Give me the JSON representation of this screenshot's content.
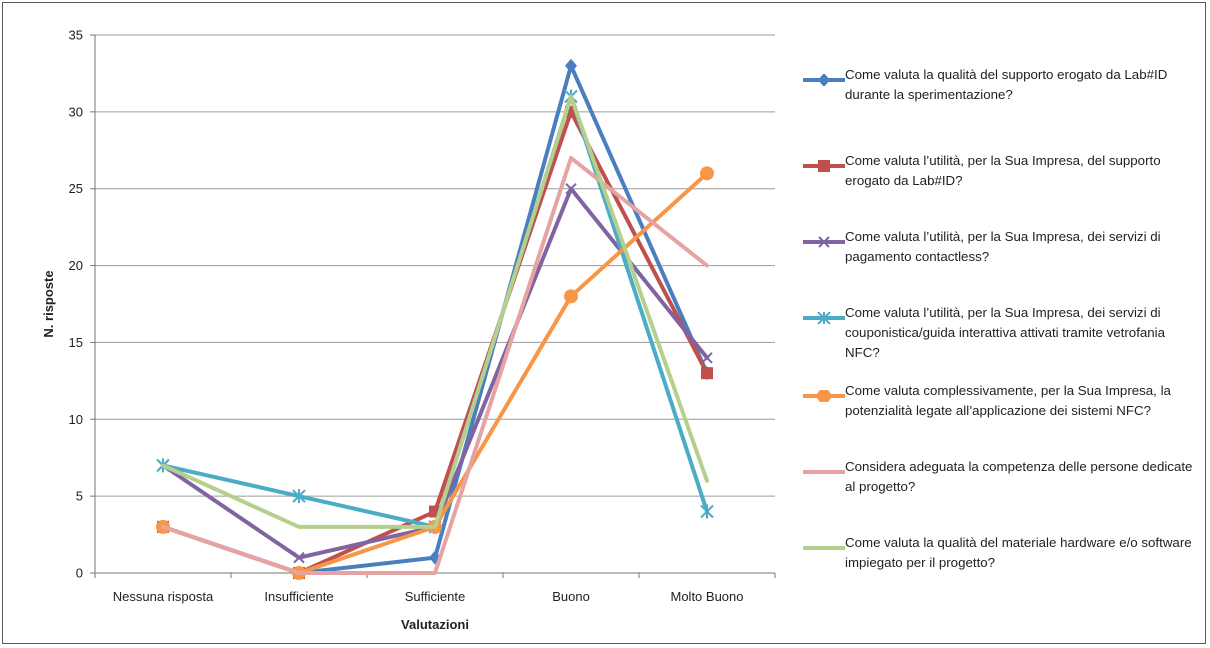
{
  "chart_data": {
    "type": "line",
    "title": "",
    "xlabel": "Valutazioni",
    "ylabel": "N. risposte",
    "ylim": [
      0,
      35
    ],
    "yticks": [
      "0",
      "5",
      "10",
      "15",
      "20",
      "25",
      "30",
      "35"
    ],
    "grid": true,
    "legend_position": "right",
    "categories": [
      "Nessuna risposta",
      "Insufficiente",
      "Sufficiente",
      "Buono",
      "Molto Buono"
    ],
    "series": [
      {
        "name": "Come valuta la qualità del supporto erogato da Lab#ID durante la sperimentazione?",
        "color": "#4a7ebf",
        "marker": "diamond",
        "values": [
          3,
          0,
          1,
          33,
          13
        ]
      },
      {
        "name": "Come valuta l’utilità, per la Sua Impresa, del supporto erogato da Lab#ID?",
        "color": "#c0504d",
        "marker": "square",
        "values": [
          3,
          0,
          4,
          30,
          13
        ]
      },
      {
        "name": "Come valuta l’utilità, per la Sua Impresa, dei servizi di pagamento contactless?",
        "color": "#8064a2",
        "marker": "x",
        "values": [
          7,
          1,
          3,
          25,
          14
        ]
      },
      {
        "name": "Come valuta l’utilità, per la Sua Impresa, dei servizi di couponistica/guida interattiva attivati tramite vetrofania NFC?",
        "color": "#4bacc6",
        "marker": "star",
        "values": [
          7,
          5,
          3,
          31,
          4
        ]
      },
      {
        "name": "Come valuta complessivamente, per la Sua Impresa, la potenzialità legate all’applicazione dei sistemi NFC?",
        "color": "#f79646",
        "marker": "circle",
        "values": [
          3,
          0,
          3,
          18,
          26
        ]
      },
      {
        "name": "Considera adeguata la competenza delle persone dedicate al progetto?",
        "color": "#e6a3a3",
        "marker": "none",
        "values": [
          3,
          0,
          0,
          27,
          20
        ]
      },
      {
        "name": "Come valuta la qualità del materiale hardware e/o software impiegato per il progetto?",
        "color": "#b5cf8c",
        "marker": "none",
        "values": [
          7,
          3,
          3,
          31,
          6
        ]
      }
    ]
  }
}
